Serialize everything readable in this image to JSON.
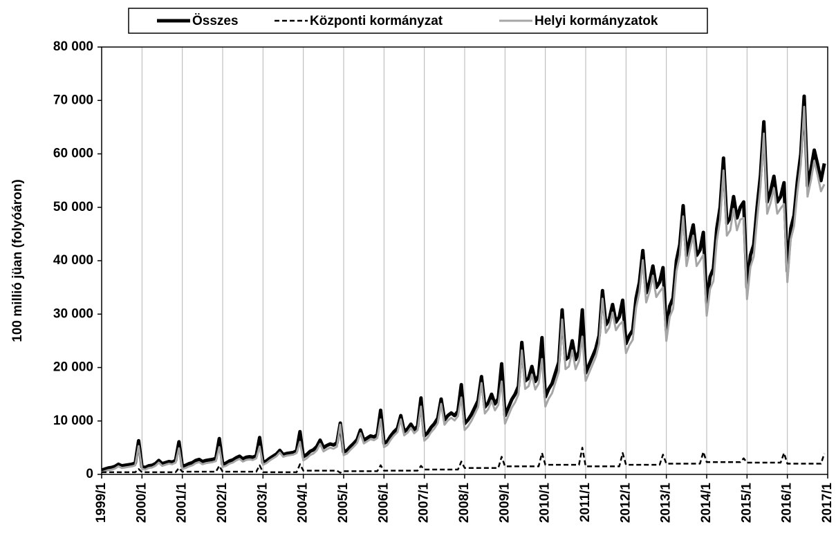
{
  "chart_data": {
    "type": "line",
    "y_label": "100 millió jüan (folyóáron)",
    "categories": [
      "1999/1",
      null,
      null,
      null,
      null,
      null,
      null,
      null,
      null,
      null,
      null,
      null,
      "2000/1",
      null,
      null,
      null,
      null,
      null,
      null,
      null,
      null,
      null,
      null,
      null,
      "2001/1",
      null,
      null,
      null,
      null,
      null,
      null,
      null,
      null,
      null,
      null,
      null,
      "2002/1",
      null,
      null,
      null,
      null,
      null,
      null,
      null,
      null,
      null,
      null,
      null,
      "2003/1",
      null,
      null,
      null,
      null,
      null,
      null,
      null,
      null,
      null,
      null,
      null,
      "2004/1",
      null,
      null,
      null,
      null,
      null,
      null,
      null,
      null,
      null,
      null,
      null,
      "2005/1",
      null,
      null,
      null,
      null,
      null,
      null,
      null,
      null,
      null,
      null,
      null,
      "2006/1",
      null,
      null,
      null,
      null,
      null,
      null,
      null,
      null,
      null,
      null,
      null,
      "2007/1",
      null,
      null,
      null,
      null,
      null,
      null,
      null,
      null,
      null,
      null,
      null,
      "2008/1",
      null,
      null,
      null,
      null,
      null,
      null,
      null,
      null,
      null,
      null,
      null,
      "2009/1",
      null,
      null,
      null,
      null,
      null,
      null,
      null,
      null,
      null,
      null,
      null,
      "2010/1",
      null,
      null,
      null,
      null,
      null,
      null,
      null,
      null,
      null,
      null,
      null,
      "2011/1",
      null,
      null,
      null,
      null,
      null,
      null,
      null,
      null,
      null,
      null,
      null,
      "2012/1",
      null,
      null,
      null,
      null,
      null,
      null,
      null,
      null,
      null,
      null,
      null,
      "2013/1",
      null,
      null,
      null,
      null,
      null,
      null,
      null,
      null,
      null,
      null,
      null,
      "2014/1",
      null,
      null,
      null,
      null,
      null,
      null,
      null,
      null,
      null,
      null,
      null,
      "2015/1",
      null,
      null,
      null,
      null,
      null,
      null,
      null,
      null,
      null,
      null,
      null,
      "2016/1",
      null,
      null,
      null,
      null,
      null,
      null,
      null,
      null,
      null,
      null,
      null,
      "2017/1"
    ],
    "series": [
      {
        "name": "Összes",
        "color": "#000000",
        "style": "solid",
        "width": 5,
        "values": [
          800,
          1000,
          1200,
          1300,
          1500,
          1900,
          1600,
          1700,
          1800,
          1900,
          2100,
          6300,
          1400,
          1300,
          1600,
          1700,
          2000,
          2600,
          2000,
          2200,
          2400,
          2300,
          2600,
          6100,
          1500,
          1700,
          2000,
          2200,
          2600,
          2800,
          2400,
          2600,
          2700,
          2800,
          3000,
          6700,
          1900,
          2100,
          2500,
          2700,
          3100,
          3400,
          2900,
          3200,
          3300,
          3200,
          3500,
          6900,
          2200,
          2500,
          3000,
          3400,
          3800,
          4500,
          3700,
          3900,
          4000,
          4100,
          4400,
          8000,
          3300,
          3700,
          4300,
          4600,
          5200,
          6400,
          5000,
          5400,
          5700,
          5500,
          5900,
          9600,
          4200,
          4500,
          5200,
          5800,
          6500,
          8300,
          6400,
          6800,
          7200,
          7000,
          7400,
          12000,
          5800,
          6200,
          7200,
          8000,
          8600,
          11000,
          8000,
          8500,
          9400,
          8400,
          9000,
          14300,
          7200,
          7800,
          8800,
          9500,
          10500,
          14100,
          10200,
          11000,
          11500,
          11000,
          11800,
          16800,
          9500,
          10200,
          11200,
          12500,
          13800,
          18300,
          12600,
          13400,
          15000,
          13200,
          14200,
          20700,
          11000,
          12500,
          14000,
          15000,
          16500,
          24700,
          17500,
          18000,
          20200,
          17400,
          18500,
          25600,
          14500,
          16000,
          17000,
          19000,
          21000,
          30800,
          21500,
          22000,
          25000,
          21500,
          23000,
          30800,
          19000,
          20500,
          22000,
          23500,
          26000,
          34400,
          28000,
          29000,
          31800,
          28500,
          29500,
          32600,
          24500,
          26000,
          27000,
          33000,
          36000,
          41900,
          34000,
          36000,
          39000,
          35000,
          36000,
          38700,
          27000,
          31500,
          33000,
          40000,
          43000,
          50300,
          41000,
          44000,
          46700,
          41000,
          42000,
          45300,
          32000,
          37000,
          38500,
          46000,
          50000,
          59200,
          47000,
          48000,
          52000,
          48000,
          50000,
          51000,
          35000,
          41000,
          43000,
          50000,
          56000,
          66000,
          51000,
          53000,
          55800,
          51000,
          52000,
          54600,
          38000,
          46000,
          48500,
          55000,
          60000,
          70800,
          54000,
          57000,
          60700,
          58000,
          55000,
          58200,
          null
        ]
      },
      {
        "name": "Helyi kormányzatok",
        "color": "#a6a6a6",
        "style": "solid",
        "width": 3,
        "values": [
          400,
          600,
          800,
          900,
          1100,
          1500,
          1200,
          1300,
          1400,
          1500,
          1700,
          5300,
          1000,
          900,
          1200,
          1300,
          1600,
          2200,
          1600,
          1800,
          2000,
          1900,
          2200,
          4900,
          1000,
          1200,
          1500,
          1700,
          2100,
          2300,
          1900,
          2100,
          2200,
          2300,
          2500,
          5100,
          1400,
          1600,
          2000,
          2200,
          2600,
          2900,
          2400,
          2700,
          2800,
          2700,
          3000,
          5200,
          1800,
          2100,
          2600,
          3000,
          3400,
          4100,
          3300,
          3500,
          3600,
          3700,
          4000,
          6100,
          2600,
          3000,
          3600,
          3900,
          4500,
          5700,
          4300,
          4700,
          5000,
          4800,
          5200,
          9300,
          3600,
          3900,
          4600,
          5200,
          5900,
          7700,
          5800,
          6200,
          6600,
          6400,
          6800,
          10300,
          5100,
          5500,
          6500,
          7300,
          7900,
          10300,
          7300,
          7800,
          8700,
          7700,
          8300,
          12700,
          6300,
          6900,
          7900,
          8600,
          9600,
          13200,
          9300,
          10100,
          10600,
          10100,
          10900,
          14400,
          8300,
          9000,
          10000,
          11300,
          12600,
          17100,
          11400,
          12200,
          13800,
          12000,
          13000,
          17400,
          9500,
          11000,
          12500,
          13500,
          15000,
          23200,
          16000,
          16500,
          18700,
          15900,
          17000,
          21600,
          12700,
          14200,
          15200,
          17200,
          19200,
          29000,
          19700,
          20200,
          23200,
          19700,
          21200,
          25800,
          17500,
          19000,
          20500,
          22000,
          24500,
          32900,
          26500,
          27500,
          30300,
          27000,
          28000,
          28600,
          22700,
          24200,
          25200,
          31200,
          34200,
          40100,
          32200,
          34200,
          37200,
          33200,
          34200,
          35000,
          25000,
          29500,
          31000,
          38000,
          41000,
          48300,
          39000,
          42000,
          44700,
          39000,
          40000,
          41100,
          29700,
          34700,
          36200,
          43700,
          47700,
          56900,
          44700,
          45700,
          49700,
          45700,
          47700,
          48000,
          32800,
          38800,
          40800,
          47800,
          53800,
          63800,
          48800,
          50800,
          53600,
          48800,
          49800,
          50600,
          36000,
          44000,
          46500,
          53000,
          58000,
          68800,
          52000,
          55000,
          58700,
          56000,
          53000,
          54300,
          null
        ]
      },
      {
        "name": "Központi kormányzat",
        "color": "#000000",
        "style": "dashed",
        "width": 2.5,
        "values": [
          400,
          400,
          400,
          400,
          400,
          400,
          400,
          400,
          400,
          400,
          400,
          1000,
          400,
          400,
          400,
          400,
          400,
          400,
          400,
          400,
          400,
          400,
          400,
          1200,
          500,
          500,
          500,
          500,
          500,
          500,
          500,
          500,
          500,
          500,
          500,
          1600,
          500,
          500,
          500,
          500,
          500,
          500,
          500,
          500,
          500,
          500,
          500,
          1700,
          400,
          400,
          400,
          400,
          400,
          400,
          400,
          400,
          400,
          400,
          400,
          1900,
          700,
          700,
          700,
          700,
          700,
          700,
          700,
          700,
          700,
          700,
          700,
          300,
          600,
          600,
          600,
          600,
          600,
          600,
          600,
          600,
          600,
          600,
          600,
          1700,
          700,
          700,
          700,
          700,
          700,
          700,
          700,
          700,
          700,
          700,
          700,
          1600,
          900,
          900,
          900,
          900,
          900,
          900,
          900,
          900,
          900,
          900,
          900,
          2400,
          1200,
          1200,
          1200,
          1200,
          1200,
          1200,
          1200,
          1200,
          1200,
          1200,
          1200,
          3300,
          1500,
          1500,
          1500,
          1500,
          1500,
          1500,
          1500,
          1500,
          1500,
          1500,
          1500,
          4000,
          1800,
          1800,
          1800,
          1800,
          1800,
          1800,
          1800,
          1800,
          1800,
          1800,
          1800,
          5000,
          1500,
          1500,
          1500,
          1500,
          1500,
          1500,
          1500,
          1500,
          1500,
          1500,
          1500,
          4000,
          1800,
          1800,
          1800,
          1800,
          1800,
          1800,
          1800,
          1800,
          1800,
          1800,
          1800,
          3700,
          2000,
          2000,
          2000,
          2000,
          2000,
          2000,
          2000,
          2000,
          2000,
          2000,
          2000,
          4200,
          2300,
          2300,
          2300,
          2300,
          2300,
          2300,
          2300,
          2300,
          2300,
          2300,
          2300,
          3000,
          2200,
          2200,
          2200,
          2200,
          2200,
          2200,
          2200,
          2200,
          2200,
          2200,
          2200,
          4000,
          2000,
          2000,
          2000,
          2000,
          2000,
          2000,
          2000,
          2000,
          2000,
          2000,
          2000,
          3900,
          null
        ]
      }
    ],
    "legend_order": [
      0,
      2,
      1
    ],
    "ylim": [
      0,
      80000
    ],
    "yticks": [
      0,
      {
        "value": 10000,
        "label": "10 000"
      },
      {
        "value": 20000,
        "label": "20 000"
      },
      {
        "value": 30000,
        "label": "30 000"
      },
      {
        "value": 40000,
        "label": "40 000"
      },
      {
        "value": 50000,
        "label": "50 000"
      },
      {
        "value": 60000,
        "label": "60 000"
      },
      {
        "value": 70000,
        "label": "70 000"
      },
      {
        "value": 80000,
        "label": "80 000"
      }
    ],
    "grid": "x",
    "legend": "top"
  }
}
